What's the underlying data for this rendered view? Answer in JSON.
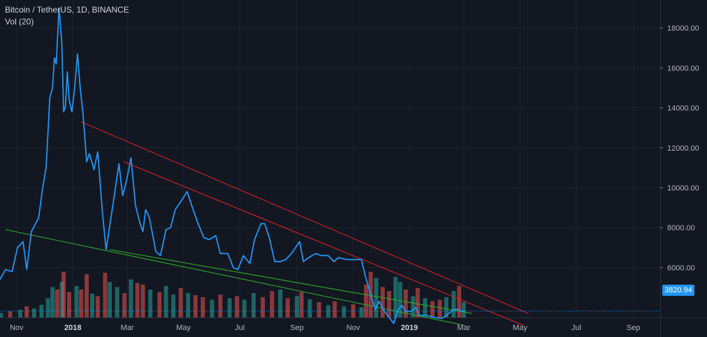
{
  "chart_data": {
    "type": "line",
    "symbol_line": "Bitcoin / TetherUS, 1D, BINANCE",
    "indicator_line": "Vol (20)",
    "last_price_label": "3820.94",
    "last_price": 3820.94,
    "ylim": [
      3500,
      19400
    ],
    "y_ticks": [
      {
        "value": 6000,
        "label": "6000.00"
      },
      {
        "value": 8000,
        "label": "8000.00"
      },
      {
        "value": 10000,
        "label": "10000.00"
      },
      {
        "value": 12000,
        "label": "12000.00"
      },
      {
        "value": 14000,
        "label": "14000.00"
      },
      {
        "value": 16000,
        "label": "16000.00"
      },
      {
        "value": 18000,
        "label": "18000.00"
      }
    ],
    "xlim": [
      "2017-10-14",
      "2019-09-30"
    ],
    "x_ticks": [
      {
        "date": "2017-11-01",
        "label": "Nov",
        "bold": false
      },
      {
        "date": "2018-01-01",
        "label": "2018",
        "bold": true
      },
      {
        "date": "2018-03-01",
        "label": "Mar",
        "bold": false
      },
      {
        "date": "2018-05-01",
        "label": "May",
        "bold": false
      },
      {
        "date": "2018-07-01",
        "label": "Jul",
        "bold": false
      },
      {
        "date": "2018-09-01",
        "label": "Sep",
        "bold": false
      },
      {
        "date": "2018-11-01",
        "label": "Nov",
        "bold": false
      },
      {
        "date": "2019-01-01",
        "label": "2019",
        "bold": true
      },
      {
        "date": "2019-03-01",
        "label": "Mar",
        "bold": false
      },
      {
        "date": "2019-05-01",
        "label": "May",
        "bold": false
      },
      {
        "date": "2019-07-01",
        "label": "Jul",
        "bold": false
      },
      {
        "date": "2019-09-01",
        "label": "Sep",
        "bold": false
      }
    ],
    "series": [
      {
        "color": "#2196f3",
        "points": [
          [
            "2017-10-14",
            5400
          ],
          [
            "2017-10-20",
            5900
          ],
          [
            "2017-10-27",
            5800
          ],
          [
            "2017-11-02",
            7000
          ],
          [
            "2017-11-08",
            7300
          ],
          [
            "2017-11-12",
            5900
          ],
          [
            "2017-11-17",
            7800
          ],
          [
            "2017-11-25",
            8500
          ],
          [
            "2017-11-29",
            9900
          ],
          [
            "2017-12-03",
            11000
          ],
          [
            "2017-12-07",
            14500
          ],
          [
            "2017-12-10",
            15000
          ],
          [
            "2017-12-12",
            16500
          ],
          [
            "2017-12-14",
            16200
          ],
          [
            "2017-12-17",
            19000
          ],
          [
            "2017-12-20",
            17300
          ],
          [
            "2017-12-22",
            13800
          ],
          [
            "2017-12-24",
            14100
          ],
          [
            "2017-12-26",
            15800
          ],
          [
            "2017-12-28",
            14400
          ],
          [
            "2017-12-31",
            13800
          ],
          [
            "2018-01-03",
            15000
          ],
          [
            "2018-01-06",
            16700
          ],
          [
            "2018-01-09",
            15000
          ],
          [
            "2018-01-12",
            13700
          ],
          [
            "2018-01-16",
            11300
          ],
          [
            "2018-01-19",
            11700
          ],
          [
            "2018-01-24",
            10900
          ],
          [
            "2018-01-28",
            11800
          ],
          [
            "2018-02-02",
            8800
          ],
          [
            "2018-02-06",
            6900
          ],
          [
            "2018-02-10",
            8100
          ],
          [
            "2018-02-14",
            9300
          ],
          [
            "2018-02-20",
            11200
          ],
          [
            "2018-02-24",
            9600
          ],
          [
            "2018-02-28",
            10300
          ],
          [
            "2018-03-05",
            11500
          ],
          [
            "2018-03-10",
            9100
          ],
          [
            "2018-03-15",
            8200
          ],
          [
            "2018-03-18",
            7800
          ],
          [
            "2018-03-21",
            8900
          ],
          [
            "2018-03-25",
            8500
          ],
          [
            "2018-04-01",
            6800
          ],
          [
            "2018-04-06",
            6600
          ],
          [
            "2018-04-12",
            7900
          ],
          [
            "2018-04-17",
            8000
          ],
          [
            "2018-04-22",
            8900
          ],
          [
            "2018-04-28",
            9300
          ],
          [
            "2018-05-05",
            9800
          ],
          [
            "2018-05-10",
            9100
          ],
          [
            "2018-05-16",
            8300
          ],
          [
            "2018-05-23",
            7500
          ],
          [
            "2018-05-29",
            7400
          ],
          [
            "2018-06-05",
            7600
          ],
          [
            "2018-06-10",
            6700
          ],
          [
            "2018-06-18",
            6700
          ],
          [
            "2018-06-24",
            6000
          ],
          [
            "2018-06-29",
            5900
          ],
          [
            "2018-07-05",
            6600
          ],
          [
            "2018-07-12",
            6200
          ],
          [
            "2018-07-17",
            7400
          ],
          [
            "2018-07-24",
            8200
          ],
          [
            "2018-07-28",
            8200
          ],
          [
            "2018-08-02",
            7500
          ],
          [
            "2018-08-08",
            6300
          ],
          [
            "2018-08-14",
            6300
          ],
          [
            "2018-08-20",
            6400
          ],
          [
            "2018-08-26",
            6700
          ],
          [
            "2018-09-04",
            7300
          ],
          [
            "2018-09-08",
            6300
          ],
          [
            "2018-09-14",
            6500
          ],
          [
            "2018-09-21",
            6700
          ],
          [
            "2018-09-28",
            6600
          ],
          [
            "2018-10-05",
            6600
          ],
          [
            "2018-10-11",
            6300
          ],
          [
            "2018-10-16",
            6500
          ],
          [
            "2018-10-25",
            6400
          ],
          [
            "2018-11-02",
            6400
          ],
          [
            "2018-11-10",
            6400
          ],
          [
            "2018-11-14",
            5600
          ],
          [
            "2018-11-19",
            4800
          ],
          [
            "2018-11-21",
            4500
          ],
          [
            "2018-11-25",
            3900
          ],
          [
            "2018-11-29",
            4300
          ],
          [
            "2018-12-05",
            3800
          ],
          [
            "2018-12-10",
            3500
          ],
          [
            "2018-12-15",
            3200
          ],
          [
            "2018-12-20",
            3900
          ],
          [
            "2018-12-24",
            4100
          ],
          [
            "2018-12-28",
            3800
          ],
          [
            "2019-01-03",
            3800
          ],
          [
            "2019-01-08",
            4000
          ],
          [
            "2019-01-12",
            3600
          ],
          [
            "2019-01-20",
            3600
          ],
          [
            "2019-01-28",
            3500
          ],
          [
            "2019-02-05",
            3450
          ],
          [
            "2019-02-10",
            3600
          ],
          [
            "2019-02-18",
            3900
          ],
          [
            "2019-02-24",
            3900
          ],
          [
            "2019-02-26",
            3800
          ],
          [
            "2019-03-02",
            3820
          ]
        ]
      }
    ],
    "trendlines": [
      {
        "color": "#c42128",
        "from": [
          "2018-01-10",
          13300
        ],
        "to": [
          "2019-05-10",
          3700
        ]
      },
      {
        "color": "#c42128",
        "from": [
          "2018-02-25",
          11300
        ],
        "to": [
          "2019-05-05",
          3100
        ]
      },
      {
        "color": "#2ca02c",
        "from": [
          "2017-10-20",
          7900
        ],
        "to": [
          "2019-03-02",
          3100
        ]
      },
      {
        "color": "#2ca02c",
        "from": [
          "2018-02-10",
          6900
        ],
        "to": [
          "2019-03-10",
          3700
        ]
      }
    ],
    "volume": {
      "up_color": "#26a69a",
      "down_color": "#ef5350",
      "max": 110000,
      "bars": [
        [
          "2017-10-15",
          9000,
          "up"
        ],
        [
          "2017-10-25",
          12000,
          "down"
        ],
        [
          "2017-11-05",
          15000,
          "up"
        ],
        [
          "2017-11-12",
          22000,
          "down"
        ],
        [
          "2017-11-20",
          18000,
          "up"
        ],
        [
          "2017-11-28",
          25000,
          "up"
        ],
        [
          "2017-12-05",
          38000,
          "up"
        ],
        [
          "2017-12-10",
          60000,
          "up"
        ],
        [
          "2017-12-15",
          55000,
          "down"
        ],
        [
          "2017-12-20",
          70000,
          "up"
        ],
        [
          "2017-12-22",
          90000,
          "down"
        ],
        [
          "2017-12-28",
          50000,
          "down"
        ],
        [
          "2018-01-05",
          62000,
          "up"
        ],
        [
          "2018-01-10",
          55000,
          "down"
        ],
        [
          "2018-01-16",
          85000,
          "down"
        ],
        [
          "2018-01-22",
          47000,
          "up"
        ],
        [
          "2018-01-28",
          42000,
          "down"
        ],
        [
          "2018-02-05",
          88000,
          "down"
        ],
        [
          "2018-02-10",
          70000,
          "up"
        ],
        [
          "2018-02-18",
          60000,
          "up"
        ],
        [
          "2018-02-26",
          48000,
          "down"
        ],
        [
          "2018-03-05",
          75000,
          "up"
        ],
        [
          "2018-03-12",
          68000,
          "down"
        ],
        [
          "2018-03-18",
          65000,
          "down"
        ],
        [
          "2018-03-26",
          55000,
          "up"
        ],
        [
          "2018-04-05",
          50000,
          "down"
        ],
        [
          "2018-04-12",
          62000,
          "up"
        ],
        [
          "2018-04-20",
          45000,
          "up"
        ],
        [
          "2018-04-28",
          58000,
          "down"
        ],
        [
          "2018-05-06",
          48000,
          "up"
        ],
        [
          "2018-05-14",
          44000,
          "down"
        ],
        [
          "2018-05-22",
          40000,
          "down"
        ],
        [
          "2018-06-01",
          35000,
          "up"
        ],
        [
          "2018-06-10",
          45000,
          "down"
        ],
        [
          "2018-06-20",
          38000,
          "up"
        ],
        [
          "2018-06-28",
          42000,
          "down"
        ],
        [
          "2018-07-06",
          35000,
          "up"
        ],
        [
          "2018-07-16",
          48000,
          "up"
        ],
        [
          "2018-07-26",
          40000,
          "down"
        ],
        [
          "2018-08-05",
          52000,
          "down"
        ],
        [
          "2018-08-14",
          55000,
          "up"
        ],
        [
          "2018-08-22",
          38000,
          "down"
        ],
        [
          "2018-09-01",
          42000,
          "up"
        ],
        [
          "2018-09-06",
          50000,
          "down"
        ],
        [
          "2018-09-15",
          36000,
          "up"
        ],
        [
          "2018-09-25",
          30000,
          "down"
        ],
        [
          "2018-10-05",
          24000,
          "up"
        ],
        [
          "2018-10-12",
          32000,
          "down"
        ],
        [
          "2018-10-22",
          22000,
          "up"
        ],
        [
          "2018-11-01",
          26000,
          "down"
        ],
        [
          "2018-11-10",
          20000,
          "up"
        ],
        [
          "2018-11-15",
          65000,
          "down"
        ],
        [
          "2018-11-20",
          90000,
          "down"
        ],
        [
          "2018-11-26",
          78000,
          "up"
        ],
        [
          "2018-12-03",
          60000,
          "down"
        ],
        [
          "2018-12-10",
          52000,
          "down"
        ],
        [
          "2018-12-17",
          80000,
          "up"
        ],
        [
          "2018-12-22",
          70000,
          "up"
        ],
        [
          "2018-12-28",
          55000,
          "down"
        ],
        [
          "2019-01-05",
          42000,
          "up"
        ],
        [
          "2019-01-10",
          58000,
          "down"
        ],
        [
          "2019-01-18",
          38000,
          "up"
        ],
        [
          "2019-01-26",
          32000,
          "down"
        ],
        [
          "2019-02-03",
          35000,
          "down"
        ],
        [
          "2019-02-10",
          40000,
          "up"
        ],
        [
          "2019-02-18",
          52000,
          "up"
        ],
        [
          "2019-02-24",
          62000,
          "down"
        ],
        [
          "2019-03-01",
          30000,
          "up"
        ]
      ]
    }
  }
}
